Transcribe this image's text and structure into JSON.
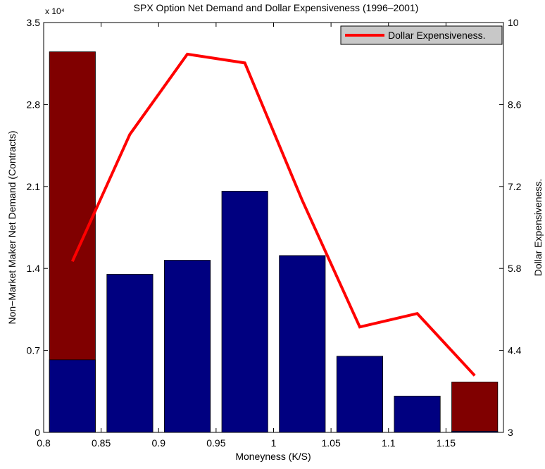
{
  "chart_data": {
    "type": "bar",
    "title": "SPX Option Net Demand and Dollar Expensiveness (1996–2001)",
    "x_label": "Moneyness (K/S)",
    "y_label": "Non−Market Maker Net Demand (Contracts)",
    "y2_label": "Dollar Expensiveness.",
    "y_multiplier": "x 10⁴",
    "xlim": [
      0.8,
      1.2
    ],
    "xticks": [
      0.8,
      0.85,
      0.9,
      0.95,
      1,
      1.05,
      1.1,
      1.15
    ],
    "ylim": [
      0,
      3.5
    ],
    "yticks": [
      0,
      0.7,
      1.4,
      2.1,
      2.8,
      3.5
    ],
    "y2lim": [
      3,
      10
    ],
    "y2ticks": [
      3,
      4.4,
      5.8,
      7.2,
      8.6,
      10
    ],
    "x": [
      0.825,
      0.875,
      0.925,
      0.975,
      1.025,
      1.075,
      1.125,
      1.175
    ],
    "series": [
      {
        "type": "bar",
        "color": "#800000",
        "values": [
          3.25,
          null,
          null,
          null,
          null,
          null,
          null,
          0.43
        ]
      },
      {
        "type": "bar",
        "color": "#000080",
        "values": [
          0.62,
          1.35,
          1.47,
          2.06,
          1.51,
          0.65,
          0.31,
          0.01
        ]
      },
      {
        "type": "line",
        "name": "Dollar Expensiveness.",
        "color": "#ff0000",
        "axis": "y2",
        "values": [
          5.92,
          8.09,
          9.46,
          9.31,
          6.96,
          4.8,
          5.03,
          3.97
        ]
      }
    ],
    "legend": "upper right"
  }
}
